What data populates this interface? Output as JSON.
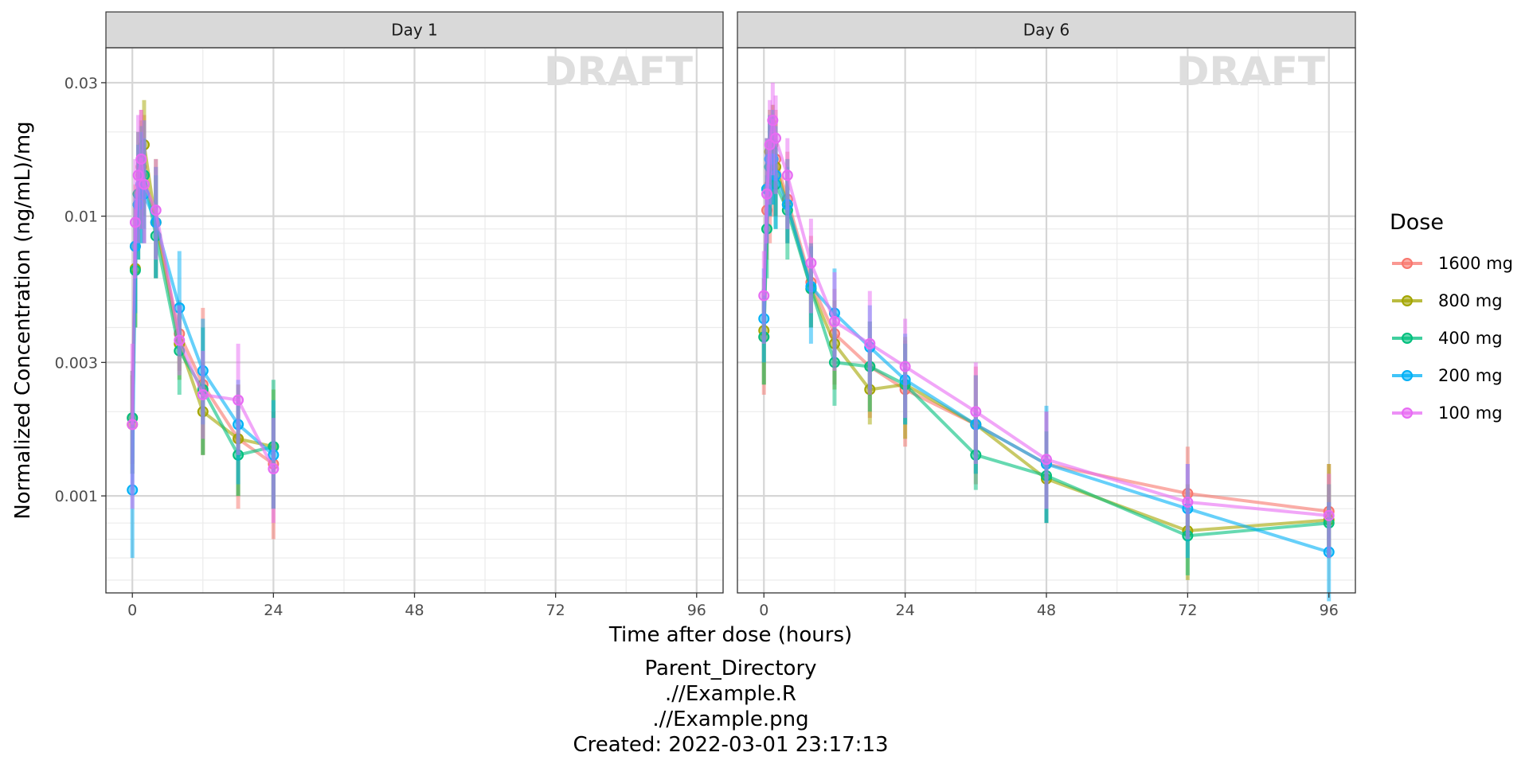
{
  "chart_data": {
    "type": "line",
    "ylabel": "Normalized Concentration (ng/mL)/mg",
    "xlabel": "Time after dose (hours)",
    "y_scale": "log10",
    "ylim": [
      0.00045,
      0.04
    ],
    "xlim": [
      -4.5,
      100.5
    ],
    "x_ticks": [
      0,
      24,
      48,
      72,
      96
    ],
    "x_tick_labels": [
      "0",
      "24",
      "48",
      "72",
      "96"
    ],
    "y_ticks": [
      0.001,
      0.003,
      0.01,
      0.03
    ],
    "y_tick_labels": [
      "0.001",
      "0.003",
      "0.01",
      "0.03"
    ],
    "grid": true,
    "watermark": "DRAFT",
    "legend": {
      "title": "Dose",
      "position": "right",
      "entries": [
        "1600 mg",
        "800 mg",
        "400 mg",
        "200 mg",
        "100 mg"
      ]
    },
    "caption": [
      "Parent_Directory",
      ".//Example.R",
      ".//Example.png",
      "Created: 2022-03-01 23:17:13"
    ],
    "facets": [
      {
        "label": "Day 1",
        "series": [
          {
            "name": "1600 mg",
            "color": "#F8766D",
            "points": [
              [
                0,
                0.0019,
                0.0013,
                0.0028
              ],
              [
                0.5,
                0.0078,
                0.0045,
                0.013
              ],
              [
                1,
                0.012,
                0.008,
                0.02
              ],
              [
                1.5,
                0.015,
                0.009,
                0.024
              ],
              [
                2,
                0.014,
                0.008,
                0.023
              ],
              [
                4,
                0.0095,
                0.006,
                0.015
              ],
              [
                8,
                0.0038,
                0.0028,
                0.005
              ],
              [
                12,
                0.0025,
                0.0014,
                0.0047
              ],
              [
                18,
                0.0016,
                0.0009,
                0.0025
              ],
              [
                24,
                0.0013,
                0.0007,
                0.002
              ]
            ]
          },
          {
            "name": "800 mg",
            "color": "#A3A500",
            "points": [
              [
                0,
                0.0018,
                0.0012,
                0.0027
              ],
              [
                0.5,
                0.0065,
                0.004,
                0.011
              ],
              [
                1,
                0.011,
                0.007,
                0.018
              ],
              [
                1.5,
                0.014,
                0.009,
                0.022
              ],
              [
                2,
                0.018,
                0.01,
                0.026
              ],
              [
                4,
                0.0095,
                0.006,
                0.016
              ],
              [
                8,
                0.0035,
                0.0026,
                0.0048
              ],
              [
                12,
                0.002,
                0.0014,
                0.003
              ],
              [
                18,
                0.0016,
                0.001,
                0.0025
              ],
              [
                24,
                0.0015,
                0.0009,
                0.0024
              ]
            ]
          },
          {
            "name": "400 mg",
            "color": "#00BF7D",
            "points": [
              [
                0,
                0.0019,
                0.0012,
                0.0028
              ],
              [
                0.5,
                0.0064,
                0.004,
                0.01
              ],
              [
                1,
                0.012,
                0.007,
                0.02
              ],
              [
                1.5,
                0.013,
                0.008,
                0.021
              ],
              [
                2,
                0.014,
                0.009,
                0.022
              ],
              [
                4,
                0.0085,
                0.006,
                0.014
              ],
              [
                8,
                0.0033,
                0.0023,
                0.0046
              ],
              [
                12,
                0.0024,
                0.0014,
                0.004
              ],
              [
                18,
                0.0014,
                0.001,
                0.0022
              ],
              [
                24,
                0.0015,
                0.0009,
                0.0026
              ]
            ]
          },
          {
            "name": "200 mg",
            "color": "#00B0F6",
            "points": [
              [
                0,
                0.00105,
                0.0006,
                0.0019
              ],
              [
                0.5,
                0.0078,
                0.0045,
                0.012
              ],
              [
                1,
                0.011,
                0.007,
                0.018
              ],
              [
                1.5,
                0.013,
                0.008,
                0.02
              ],
              [
                2,
                0.012,
                0.008,
                0.019
              ],
              [
                4,
                0.0095,
                0.006,
                0.015
              ],
              [
                8,
                0.0047,
                0.0032,
                0.0075
              ],
              [
                12,
                0.0028,
                0.0018,
                0.0043
              ],
              [
                18,
                0.0018,
                0.0011,
                0.0026
              ],
              [
                24,
                0.0014,
                0.0009,
                0.0022
              ]
            ]
          },
          {
            "name": "100 mg",
            "color": "#E76BF3",
            "points": [
              [
                0,
                0.0018,
                0.0009,
                0.0035
              ],
              [
                0.5,
                0.0095,
                0.006,
                0.016
              ],
              [
                1,
                0.014,
                0.008,
                0.023
              ],
              [
                1.5,
                0.016,
                0.009,
                0.024
              ],
              [
                2,
                0.013,
                0.008,
                0.022
              ],
              [
                4,
                0.0105,
                0.007,
                0.016
              ],
              [
                8,
                0.0036,
                0.0027,
                0.0048
              ],
              [
                12,
                0.0023,
                0.0016,
                0.0033
              ],
              [
                18,
                0.0022,
                0.0014,
                0.0035
              ],
              [
                24,
                0.00125,
                0.0008,
                0.0019
              ]
            ]
          }
        ]
      },
      {
        "label": "Day 6",
        "series": [
          {
            "name": "1600 mg",
            "color": "#F8766D",
            "points": [
              [
                0,
                0.0037,
                0.0023,
                0.0055
              ],
              [
                0.5,
                0.0105,
                0.007,
                0.017
              ],
              [
                1,
                0.013,
                0.008,
                0.021
              ],
              [
                1.5,
                0.016,
                0.01,
                0.025
              ],
              [
                2,
                0.016,
                0.01,
                0.024
              ],
              [
                4,
                0.0115,
                0.008,
                0.017
              ],
              [
                8,
                0.0058,
                0.004,
                0.0085
              ],
              [
                12,
                0.0038,
                0.0025,
                0.0055
              ],
              [
                18,
                0.0029,
                0.0019,
                0.0042
              ],
              [
                24,
                0.0024,
                0.0015,
                0.0036
              ],
              [
                36,
                0.0018,
                0.0011,
                0.0029
              ],
              [
                48,
                0.0013,
                0.0008,
                0.002
              ],
              [
                72,
                0.00102,
                0.0007,
                0.0015
              ],
              [
                96,
                0.00088,
                0.0006,
                0.0013
              ]
            ]
          },
          {
            "name": "800 mg",
            "color": "#A3A500",
            "points": [
              [
                0,
                0.0039,
                0.0025,
                0.006
              ],
              [
                0.5,
                0.0125,
                0.008,
                0.019
              ],
              [
                1,
                0.017,
                0.011,
                0.024
              ],
              [
                1.5,
                0.018,
                0.012,
                0.025
              ],
              [
                2,
                0.015,
                0.01,
                0.022
              ],
              [
                4,
                0.011,
                0.008,
                0.016
              ],
              [
                8,
                0.0055,
                0.004,
                0.008
              ],
              [
                12,
                0.0035,
                0.0024,
                0.005
              ],
              [
                18,
                0.0024,
                0.0018,
                0.0033
              ],
              [
                24,
                0.0025,
                0.0016,
                0.0037
              ],
              [
                36,
                0.0018,
                0.0012,
                0.0027
              ],
              [
                48,
                0.00115,
                0.0008,
                0.0017
              ],
              [
                72,
                0.00075,
                0.0005,
                0.0011
              ],
              [
                96,
                0.00082,
                0.0006,
                0.0013
              ]
            ]
          },
          {
            "name": "400 mg",
            "color": "#00BF7D",
            "points": [
              [
                0,
                0.0037,
                0.0025,
                0.0055
              ],
              [
                0.5,
                0.009,
                0.006,
                0.014
              ],
              [
                1,
                0.015,
                0.01,
                0.022
              ],
              [
                1.5,
                0.016,
                0.011,
                0.023
              ],
              [
                2,
                0.013,
                0.009,
                0.019
              ],
              [
                4,
                0.0105,
                0.007,
                0.015
              ],
              [
                8,
                0.0055,
                0.004,
                0.0078
              ],
              [
                12,
                0.003,
                0.0021,
                0.0045
              ],
              [
                18,
                0.0029,
                0.002,
                0.0042
              ],
              [
                24,
                0.0025,
                0.0018,
                0.0035
              ],
              [
                36,
                0.0014,
                0.00105,
                0.002
              ],
              [
                48,
                0.00118,
                0.0008,
                0.0017
              ],
              [
                72,
                0.00072,
                0.00052,
                0.001
              ],
              [
                96,
                0.0008,
                0.0006,
                0.0011
              ]
            ]
          },
          {
            "name": "200 mg",
            "color": "#00B0F6",
            "points": [
              [
                0,
                0.0043,
                0.003,
                0.0065
              ],
              [
                0.5,
                0.0125,
                0.008,
                0.019
              ],
              [
                1,
                0.016,
                0.01,
                0.023
              ],
              [
                1.5,
                0.016,
                0.011,
                0.024
              ],
              [
                2,
                0.014,
                0.009,
                0.021
              ],
              [
                4,
                0.011,
                0.008,
                0.016
              ],
              [
                8,
                0.0056,
                0.0035,
                0.008
              ],
              [
                12,
                0.0045,
                0.0031,
                0.0065
              ],
              [
                18,
                0.0034,
                0.0024,
                0.0048
              ],
              [
                24,
                0.0026,
                0.0018,
                0.0038
              ],
              [
                36,
                0.0018,
                0.0012,
                0.0027
              ],
              [
                48,
                0.0013,
                0.0008,
                0.0021
              ],
              [
                72,
                0.0009,
                0.0006,
                0.0013
              ],
              [
                96,
                0.00063,
                0.00042,
                0.00095
              ]
            ]
          },
          {
            "name": "100 mg",
            "color": "#E76BF3",
            "points": [
              [
                0,
                0.0052,
                0.0035,
                0.0075
              ],
              [
                0.5,
                0.012,
                0.008,
                0.019
              ],
              [
                1,
                0.018,
                0.011,
                0.026
              ],
              [
                1.5,
                0.022,
                0.014,
                0.03
              ],
              [
                2,
                0.019,
                0.012,
                0.027
              ],
              [
                4,
                0.014,
                0.009,
                0.019
              ],
              [
                8,
                0.0068,
                0.0045,
                0.0098
              ],
              [
                12,
                0.0042,
                0.0028,
                0.0063
              ],
              [
                18,
                0.0035,
                0.0023,
                0.0054
              ],
              [
                24,
                0.0029,
                0.0019,
                0.0043
              ],
              [
                36,
                0.002,
                0.0013,
                0.003
              ],
              [
                48,
                0.00135,
                0.0009,
                0.002
              ],
              [
                72,
                0.00095,
                0.0007,
                0.0013
              ],
              [
                96,
                0.00085,
                0.0006,
                0.0012
              ]
            ]
          }
        ]
      }
    ]
  }
}
